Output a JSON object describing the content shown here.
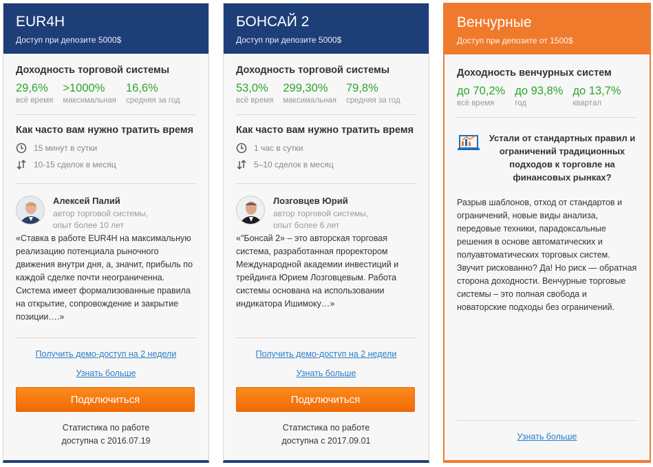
{
  "cards": [
    {
      "title": "EUR4H",
      "subtitle": "Доступ при депозите 5000$",
      "yield_title": "Доходность торговой системы",
      "stats": [
        {
          "value": "29,6%",
          "label": "всё время"
        },
        {
          "value": ">1000%",
          "label": "максимальная"
        },
        {
          "value": "16,6%",
          "label": "средняя за год"
        }
      ],
      "time_title": "Как часто вам нужно тратить время",
      "time_per_day": "15 минут в сутки",
      "deals_per_month": "10-15 сделок в месяц",
      "author_name": "Алексей Палий",
      "author_role": "автор торговой системы,",
      "author_exp": "опыт более 10 лет",
      "quote": "«Ставка в работе EUR4H на максимальную реализацию потенциала рыночного движения внутри дня, а, значит, прибыль по каждой сделке почти неограниченна. Система имеет формализованные правила на открытие, сопровождение и закрытие позиции….»",
      "demo_link": "Получить демо-доступ на 2 недели",
      "more_link": "Узнать больше",
      "connect_button": "Подключиться",
      "stats_note_1": "Статистика по работе",
      "stats_note_2": "доступна с 2016.07.19"
    },
    {
      "title": "БОНСАЙ 2",
      "subtitle": "Доступ при депозите 5000$",
      "yield_title": "Доходность торговой системы",
      "stats": [
        {
          "value": "53,0%",
          "label": "всё время"
        },
        {
          "value": "299,30%",
          "label": "максимальная"
        },
        {
          "value": "79,8%",
          "label": "средняя за год"
        }
      ],
      "time_title": "Как часто вам нужно тратить время",
      "time_per_day": "1 час в сутки",
      "deals_per_month": "5–10 сделок в месяц",
      "author_name": "Лозговцев Юрий",
      "author_role": "автор торговой системы,",
      "author_exp": "опыт более 6 лет",
      "quote": "«\"Бонсай 2» – это авторская торговая система, разработанная проректором Международной академии инвестиций и трейдинга Юрием Лозговцевым. Работа системы основана на использовании индикатора Ишимоку…»",
      "demo_link": "Получить демо-доступ на 2 недели",
      "more_link": "Узнать больше",
      "connect_button": "Подключиться",
      "stats_note_1": "Статистика по работе",
      "stats_note_2": "доступна с 2017.09.01"
    },
    {
      "title": "Венчурные",
      "subtitle": "Доступ при депозите от 1500$",
      "yield_title": "Доходность венчурных систем",
      "stats": [
        {
          "value": "до 70,2%",
          "label": "всё время"
        },
        {
          "value": "до 93,8%",
          "label": "год"
        },
        {
          "value": "до 13,7%",
          "label": "квартал"
        }
      ],
      "promo_title": "Устали от стандартных правил и ограничений традиционных подходов к торговле на финансовых рынках?",
      "promo_text": "Разрыв шаблонов, отход от стандартов и ограничений, новые виды анализа, передовые техники, парадоксальные решения в основе автоматических и полуавтоматических торговых систем. Звучит рискованно? Да! Но риск — обратная сторона доходности. Венчурные торговые системы – это полная свобода и новаторские подходы без ограничений.",
      "more_link": "Узнать больше"
    }
  ],
  "colors": {
    "header_blue": "#1e3e78",
    "header_orange": "#f07a2c",
    "stat_green": "#2ca52c",
    "link_blue": "#2a7cc7",
    "button_orange": "#f47a12"
  }
}
